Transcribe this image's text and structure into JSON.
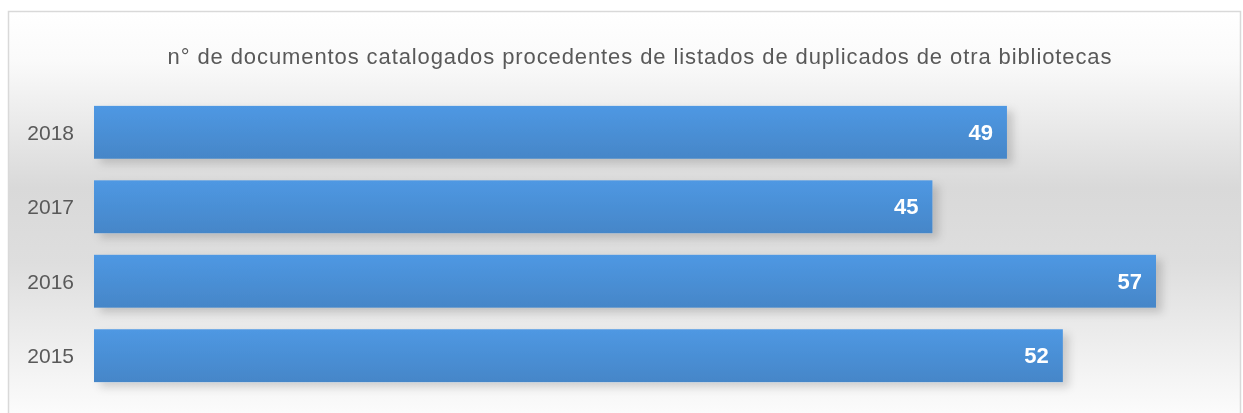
{
  "chart_data": {
    "type": "bar",
    "orientation": "horizontal",
    "title": "n° de documentos catalogados procedentes de listados de duplicados de otra bibliotecas",
    "categories": [
      "2018",
      "2017",
      "2016",
      "2015"
    ],
    "values": [
      49,
      45,
      57,
      52
    ],
    "color": "#4a8fd5",
    "data_labels": true,
    "tick_labels": "y"
  }
}
